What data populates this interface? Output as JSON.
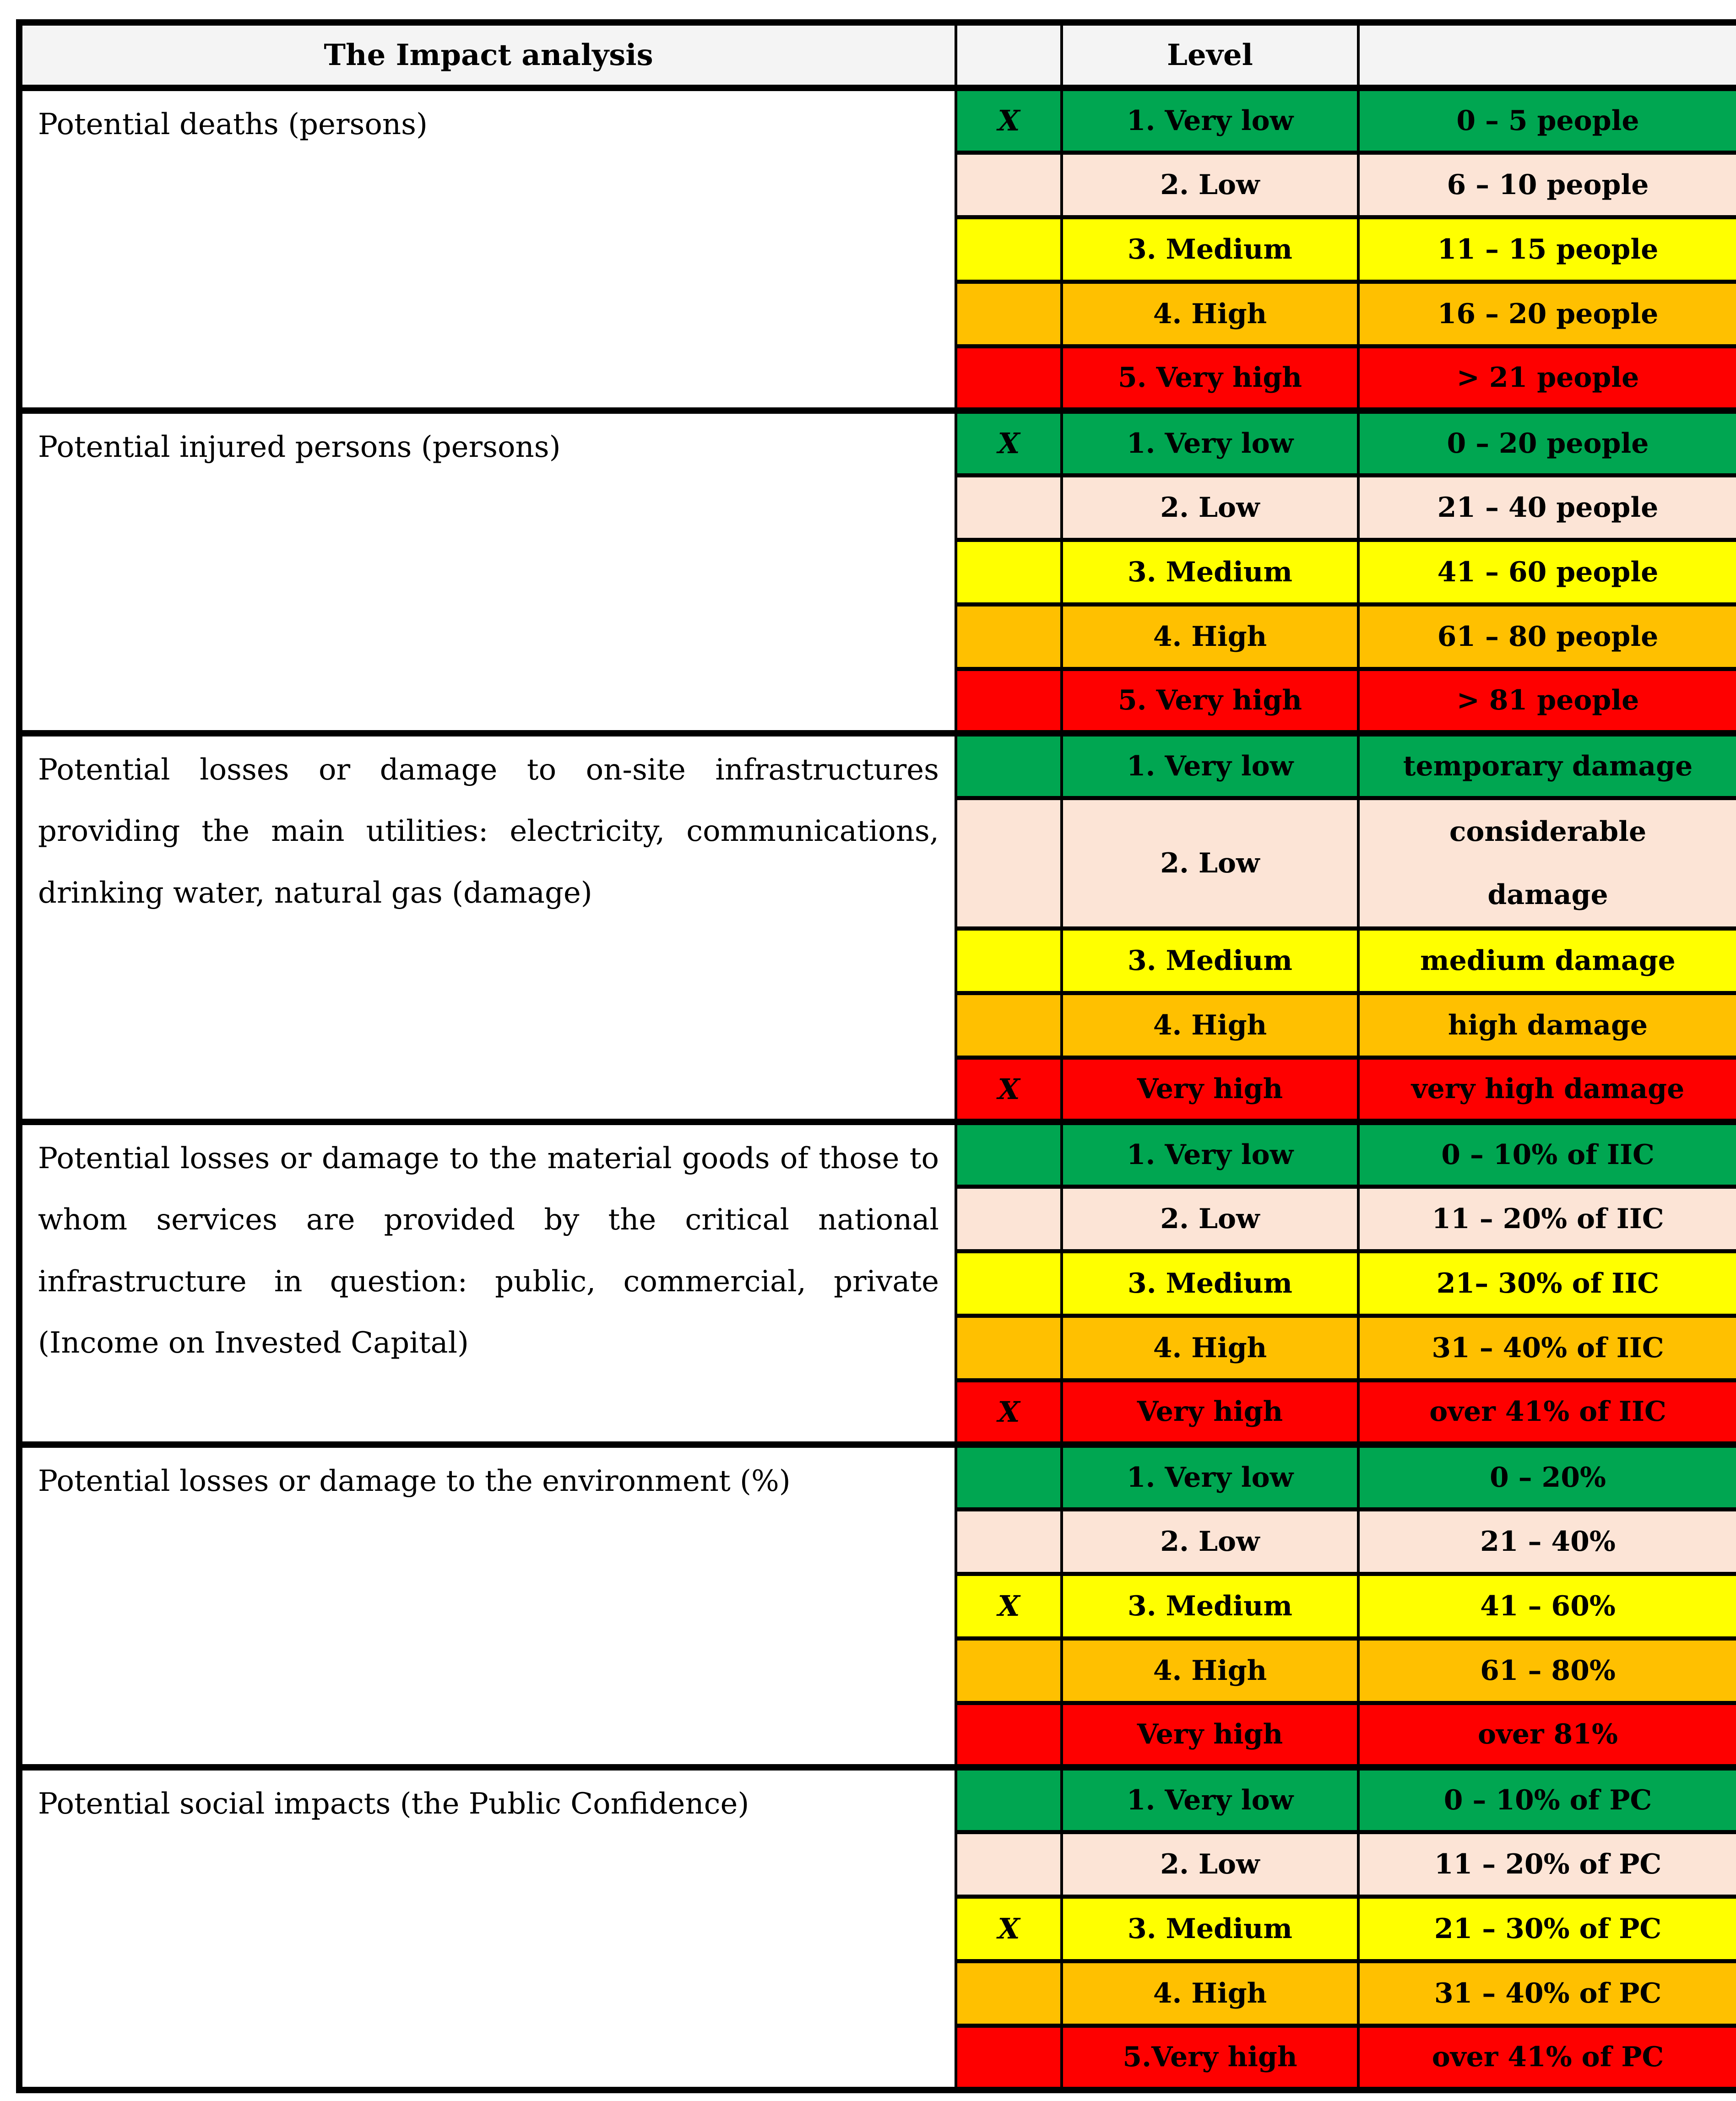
{
  "header": {
    "title": "The Impact analysis",
    "marker_column_label": "",
    "level_label": "Level",
    "range_column_label": ""
  },
  "marker": "X",
  "colors": {
    "green": "#00A651",
    "peach": "#FCE4D6",
    "yellow": "#FFFF00",
    "orange": "#FFC000",
    "red": "#FE0000",
    "header_bg": "#F4F4F4",
    "border": "#000000"
  },
  "sections": [
    {
      "description_lines": [
        "Potential deaths (persons)"
      ],
      "justified": false,
      "rows": [
        {
          "marked": true,
          "level": "1. Very low",
          "value": "0 – 5 people",
          "color": "green"
        },
        {
          "marked": false,
          "level": "2. Low",
          "value": "6 – 10 people",
          "color": "peach"
        },
        {
          "marked": false,
          "level": "3. Medium",
          "value": "11 – 15 people",
          "color": "yellow"
        },
        {
          "marked": false,
          "level": "4. High",
          "value": "16 – 20 people",
          "color": "orange"
        },
        {
          "marked": false,
          "level": "5. Very high",
          "value": "> 21 people",
          "color": "red"
        }
      ]
    },
    {
      "description_lines": [
        "Potential injured persons (persons)"
      ],
      "justified": false,
      "rows": [
        {
          "marked": true,
          "level": "1. Very low",
          "value": "0 – 20 people",
          "color": "green"
        },
        {
          "marked": false,
          "level": "2. Low",
          "value": "21 – 40 people",
          "color": "peach"
        },
        {
          "marked": false,
          "level": "3. Medium",
          "value": "41 – 60 people",
          "color": "yellow"
        },
        {
          "marked": false,
          "level": "4. High",
          "value": "61 – 80 people",
          "color": "orange"
        },
        {
          "marked": false,
          "level": "5. Very high",
          "value": "> 81 people",
          "color": "red"
        }
      ]
    },
    {
      "description_lines": [
        "Potential losses or damage to on-site infrastructures",
        "providing the main utilities: electricity, communications,",
        "drinking water, natural gas (damage)"
      ],
      "justified": true,
      "rows": [
        {
          "marked": false,
          "level": "1. Very low",
          "value": "temporary damage",
          "color": "green"
        },
        {
          "marked": false,
          "level": "2. Low",
          "value": "considerable damage",
          "value_lines": [
            "considerable",
            "damage"
          ],
          "color": "peach",
          "tall": true
        },
        {
          "marked": false,
          "level": "3. Medium",
          "value": "medium damage",
          "color": "yellow"
        },
        {
          "marked": false,
          "level": "4. High",
          "value": "high damage",
          "color": "orange"
        },
        {
          "marked": true,
          "level": "Very high",
          "value": "very high damage",
          "color": "red"
        }
      ]
    },
    {
      "description_lines": [
        "Potential losses or damage to the material goods of those to",
        "whom services are provided by the critical national",
        "infrastructure in question: public, commercial, private",
        "(Income on Invested Capital)"
      ],
      "justified": true,
      "rows": [
        {
          "marked": false,
          "level": "1. Very low",
          "value": "0 – 10% of IIC",
          "color": "green"
        },
        {
          "marked": false,
          "level": "2. Low",
          "value": "11 – 20% of IIC",
          "color": "peach"
        },
        {
          "marked": false,
          "level": "3. Medium",
          "value": "21– 30% of IIC",
          "color": "yellow"
        },
        {
          "marked": false,
          "level": "4. High",
          "value": "31 – 40% of IIC",
          "color": "orange"
        },
        {
          "marked": true,
          "level": "Very high",
          "value": "over 41% of IIC",
          "color": "red"
        }
      ]
    },
    {
      "description_lines": [
        "Potential losses or damage to the environment (%)"
      ],
      "justified": false,
      "rows": [
        {
          "marked": false,
          "level": "1. Very low",
          "value": "0 – 20%",
          "color": "green"
        },
        {
          "marked": false,
          "level": "2. Low",
          "value": "21 – 40%",
          "color": "peach"
        },
        {
          "marked": true,
          "level": "3. Medium",
          "value": "41 – 60%",
          "color": "yellow"
        },
        {
          "marked": false,
          "level": "4. High",
          "value": "61 – 80%",
          "color": "orange"
        },
        {
          "marked": false,
          "level": "Very high",
          "value": "over 81%",
          "color": "red"
        }
      ]
    },
    {
      "description_lines": [
        "Potential social impacts (the Public Confidence)"
      ],
      "justified": false,
      "rows": [
        {
          "marked": false,
          "level": "1. Very low",
          "value": "0 – 10% of PC",
          "color": "green"
        },
        {
          "marked": false,
          "level": "2. Low",
          "value": "11 – 20% of PC",
          "color": "peach"
        },
        {
          "marked": true,
          "level": "3. Medium",
          "value": "21 – 30% of PC",
          "color": "yellow"
        },
        {
          "marked": false,
          "level": "4. High",
          "value": "31 – 40% of PC",
          "color": "orange"
        },
        {
          "marked": false,
          "level": "5.Very high",
          "value": "over 41% of PC",
          "color": "red"
        }
      ]
    }
  ]
}
